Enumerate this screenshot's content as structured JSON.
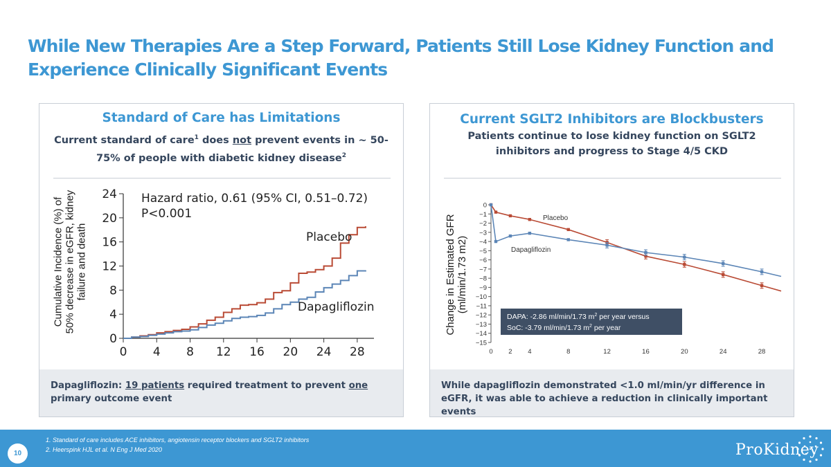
{
  "slide": {
    "title": "While New Therapies Are a Step Forward, Patients Still Lose Kidney Function and Experience Clinically Significant Events",
    "page_number": "10"
  },
  "left_panel": {
    "heading": "Standard of Care has Limitations",
    "sub_pre": "Current standard of care",
    "sub_sup1": "1",
    "sub_mid": " does ",
    "sub_not": "not",
    "sub_post": " prevent events in ~ 50-75% of people with diabetic kidney disease",
    "sub_sup2": "2",
    "foot_pre": "Dapagliflozin: ",
    "foot_u1": "19 patients",
    "foot_mid": " required treatment to prevent ",
    "foot_u2": "one",
    "foot_post": " primary outcome event"
  },
  "right_panel": {
    "heading": "Current SGLT2 Inhibitors are Blockbusters",
    "sub": "Patients continue to lose kidney function on SGLT2 inhibitors and progress to Stage 4/5 CKD",
    "foot": "While dapagliflozin demonstrated <1.0 ml/min/yr difference in eGFR, it was able to achieve a reduction in clinically important events"
  },
  "footnotes": [
    "1.   Standard of  care includes ACE inhibitors, angiotensin receptor blockers and SGLT2 inhibitors",
    "2.   Heerspink HJL et al. N Eng J Med 2020"
  ],
  "brand": {
    "name": "ProKidney"
  },
  "colors": {
    "accent": "#3d97d3",
    "placebo": "#b94a34",
    "dapagliflozin": "#5b85b6",
    "dark": "#35465d",
    "callout": "#3f4f65"
  },
  "chart_data": [
    {
      "type": "line",
      "ylabel_lines": [
        "Cumulative Incidence (%) of",
        "50% decrease in eGFR, kidney",
        "failure and death"
      ],
      "xlabel": "",
      "x_ticks": [
        0,
        4,
        8,
        12,
        16,
        20,
        24,
        28
      ],
      "y_ticks": [
        0,
        4,
        8,
        12,
        16,
        20,
        24
      ],
      "xlim": [
        0,
        30
      ],
      "ylim": [
        0,
        24
      ],
      "annotation_lines": [
        "Hazard ratio, 0.61 (95% CI, 0.51–0.72)",
        "P<0.001"
      ],
      "series": [
        {
          "name": "Placebo",
          "x": [
            0,
            1,
            2,
            3,
            4,
            5,
            6,
            7,
            8,
            9,
            10,
            11,
            12,
            13,
            14,
            15,
            16,
            17,
            18,
            19,
            20,
            21,
            22,
            23,
            24,
            25,
            26,
            27,
            28,
            29
          ],
          "values": [
            0,
            0.2,
            0.4,
            0.6,
            0.9,
            1.1,
            1.3,
            1.5,
            1.9,
            2.4,
            3.0,
            3.5,
            4.3,
            4.9,
            5.5,
            5.6,
            5.9,
            6.5,
            7.6,
            7.9,
            9.2,
            10.8,
            11.0,
            11.4,
            12.0,
            13.3,
            15.8,
            17.2,
            18.4,
            18.6
          ]
        },
        {
          "name": "Dapagliflozin",
          "x": [
            0,
            1,
            2,
            3,
            4,
            5,
            6,
            7,
            8,
            9,
            10,
            11,
            12,
            13,
            14,
            15,
            16,
            17,
            18,
            19,
            20,
            21,
            22,
            23,
            24,
            25,
            26,
            27,
            28,
            29
          ],
          "values": [
            0,
            0.2,
            0.3,
            0.5,
            0.7,
            0.9,
            1.1,
            1.2,
            1.4,
            1.8,
            2.2,
            2.5,
            2.9,
            3.3,
            3.5,
            3.6,
            3.8,
            4.2,
            4.9,
            5.6,
            6.0,
            6.5,
            6.8,
            7.7,
            8.4,
            9.0,
            9.6,
            10.4,
            11.2,
            11.3
          ]
        }
      ]
    },
    {
      "type": "line",
      "ylabel_lines": [
        "Change in Estimated GFR",
        "(ml/min/1.73 m2)"
      ],
      "xlabel": "",
      "x_ticks": [
        0,
        2,
        4,
        8,
        12,
        16,
        20,
        24,
        28
      ],
      "y_ticks": [
        0,
        -1,
        -2,
        -3,
        -4,
        -5,
        -6,
        -7,
        -8,
        -9,
        -10,
        -11,
        -12,
        -13,
        -14,
        -15
      ],
      "xlim": [
        0,
        30
      ],
      "ylim": [
        -15,
        0
      ],
      "callout_lines": [
        "DAPA: -2.86 ml/min/1.73 m",
        "SoC: -3.79 ml/min/1.73 m"
      ],
      "callout_sup": "2",
      "callout_tail": " per year versus",
      "callout_tail2": " per year",
      "series": [
        {
          "name": "Placebo",
          "x": [
            0,
            0.5,
            2,
            4,
            8,
            12,
            16,
            20,
            24,
            28,
            30
          ],
          "values": [
            0,
            -0.8,
            -1.2,
            -1.6,
            -2.7,
            -4.1,
            -5.6,
            -6.5,
            -7.6,
            -8.8,
            -9.4
          ],
          "marker_x": [
            0,
            0.5,
            2,
            4,
            8,
            12,
            16,
            20,
            24,
            28
          ]
        },
        {
          "name": "Dapagliflozin",
          "x": [
            0,
            0.5,
            2,
            4,
            8,
            12,
            16,
            20,
            24,
            28,
            30
          ],
          "values": [
            0,
            -4.0,
            -3.4,
            -3.1,
            -3.8,
            -4.4,
            -5.2,
            -5.7,
            -6.4,
            -7.3,
            -7.8
          ],
          "marker_x": [
            0,
            0.5,
            2,
            4,
            8,
            12,
            16,
            20,
            24,
            28
          ]
        }
      ]
    }
  ]
}
